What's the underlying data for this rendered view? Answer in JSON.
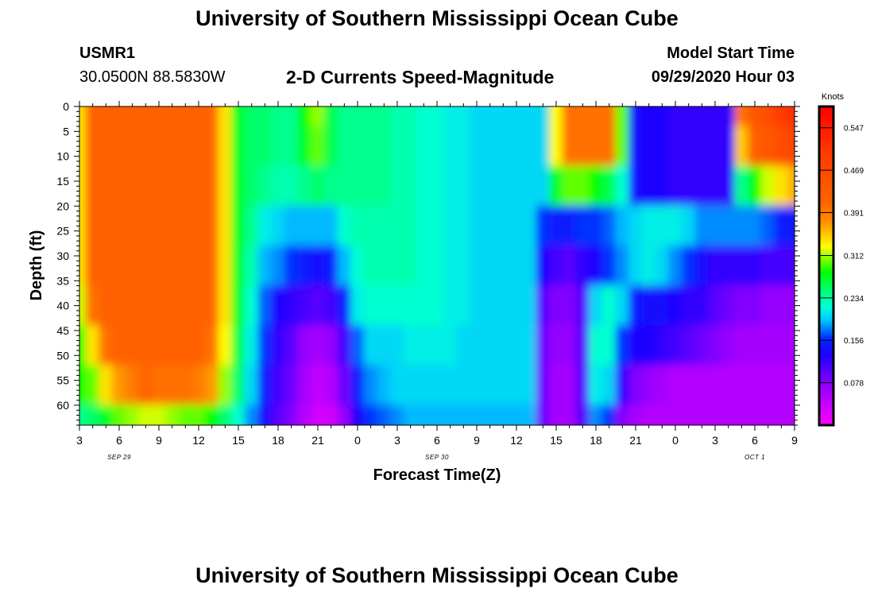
{
  "header": {
    "title": "University of Southern Mississippi Ocean Cube",
    "footer_title": "University of Southern Mississippi Ocean Cube",
    "station": "USMR1",
    "coords": "30.0500N 88.5830W",
    "chart_title": "2-D Currents Speed-Magnitude",
    "model_label": "Model Start Time",
    "model_datetime": "09/29/2020 Hour 03"
  },
  "chart_data": {
    "type": "heatmap",
    "title": "2-D Currents Speed-Magnitude",
    "xlabel": "Forecast Time(Z)",
    "ylabel": "Depth (ft)",
    "x_ticks": [
      "3",
      "6",
      "9",
      "12",
      "15",
      "18",
      "21",
      "0",
      "3",
      "6",
      "9",
      "12",
      "15",
      "18",
      "21",
      "0",
      "3",
      "6",
      "9"
    ],
    "x_date_labels": [
      {
        "label": "SEP 29",
        "at_tick": 1
      },
      {
        "label": "SEP 30",
        "at_tick": 9
      },
      {
        "label": "OCT 1",
        "at_tick": 17
      }
    ],
    "y_ticks": [
      0,
      5,
      10,
      15,
      20,
      25,
      30,
      35,
      40,
      45,
      50,
      55,
      60
    ],
    "ylim": [
      0,
      64
    ],
    "colorbar": {
      "unit": "Knots",
      "ticks": [
        "0.547",
        "0.469",
        "0.391",
        "0.312",
        "0.234",
        "0.156",
        "0.078"
      ],
      "range": [
        0,
        0.586
      ]
    },
    "columns_hours": [
      0,
      1,
      2,
      3,
      4,
      5,
      6,
      7,
      8,
      9,
      10,
      11,
      12,
      13,
      14,
      15,
      16,
      17,
      18,
      19,
      20,
      21,
      22,
      23,
      24,
      25,
      26,
      27,
      28,
      29,
      30,
      31,
      32,
      33,
      34,
      35,
      36,
      37,
      38,
      39,
      40,
      41,
      42,
      43,
      44,
      45,
      46,
      47,
      48,
      49,
      50,
      51,
      52,
      53,
      54
    ],
    "rows_depth_ft": [
      0,
      8,
      16,
      24,
      32,
      40,
      48,
      56,
      64
    ],
    "speed_knots": [
      [
        0.34,
        0.42,
        0.42,
        0.42,
        0.42,
        0.42,
        0.42,
        0.42,
        0.42,
        0.42,
        0.41,
        0.34,
        0.27,
        0.25,
        0.25,
        0.24,
        0.24,
        0.28,
        0.31,
        0.26,
        0.24,
        0.24,
        0.24,
        0.24,
        0.23,
        0.23,
        0.22,
        0.22,
        0.21,
        0.21,
        0.2,
        0.2,
        0.2,
        0.2,
        0.2,
        0.2,
        0.33,
        0.4,
        0.4,
        0.4,
        0.4,
        0.3,
        0.14,
        0.13,
        0.13,
        0.12,
        0.12,
        0.12,
        0.12,
        0.12,
        0.4,
        0.44,
        0.46,
        0.5,
        0.52
      ],
      [
        0.34,
        0.42,
        0.42,
        0.42,
        0.42,
        0.42,
        0.42,
        0.42,
        0.42,
        0.42,
        0.41,
        0.34,
        0.27,
        0.25,
        0.25,
        0.24,
        0.24,
        0.27,
        0.3,
        0.26,
        0.24,
        0.24,
        0.24,
        0.24,
        0.23,
        0.23,
        0.22,
        0.22,
        0.21,
        0.21,
        0.2,
        0.2,
        0.2,
        0.2,
        0.2,
        0.2,
        0.33,
        0.4,
        0.4,
        0.4,
        0.4,
        0.3,
        0.14,
        0.13,
        0.13,
        0.12,
        0.12,
        0.12,
        0.12,
        0.12,
        0.35,
        0.42,
        0.44,
        0.46,
        0.48
      ],
      [
        0.34,
        0.42,
        0.42,
        0.42,
        0.42,
        0.42,
        0.42,
        0.42,
        0.42,
        0.42,
        0.41,
        0.34,
        0.27,
        0.25,
        0.24,
        0.23,
        0.23,
        0.24,
        0.25,
        0.24,
        0.24,
        0.24,
        0.24,
        0.24,
        0.23,
        0.23,
        0.22,
        0.22,
        0.21,
        0.21,
        0.2,
        0.2,
        0.2,
        0.2,
        0.2,
        0.2,
        0.27,
        0.3,
        0.3,
        0.28,
        0.26,
        0.22,
        0.14,
        0.13,
        0.13,
        0.12,
        0.12,
        0.12,
        0.12,
        0.12,
        0.24,
        0.28,
        0.32,
        0.34,
        0.36
      ],
      [
        0.34,
        0.42,
        0.42,
        0.42,
        0.42,
        0.42,
        0.42,
        0.42,
        0.42,
        0.42,
        0.41,
        0.34,
        0.27,
        0.24,
        0.21,
        0.2,
        0.19,
        0.19,
        0.19,
        0.19,
        0.22,
        0.23,
        0.23,
        0.23,
        0.23,
        0.23,
        0.22,
        0.22,
        0.21,
        0.21,
        0.2,
        0.2,
        0.2,
        0.2,
        0.2,
        0.16,
        0.15,
        0.15,
        0.16,
        0.16,
        0.17,
        0.19,
        0.2,
        0.21,
        0.21,
        0.21,
        0.2,
        0.18,
        0.18,
        0.18,
        0.18,
        0.18,
        0.17,
        0.15,
        0.15
      ],
      [
        0.34,
        0.42,
        0.42,
        0.42,
        0.42,
        0.42,
        0.42,
        0.42,
        0.42,
        0.42,
        0.41,
        0.34,
        0.27,
        0.23,
        0.19,
        0.18,
        0.16,
        0.15,
        0.14,
        0.15,
        0.19,
        0.22,
        0.23,
        0.23,
        0.23,
        0.23,
        0.22,
        0.22,
        0.21,
        0.21,
        0.2,
        0.2,
        0.2,
        0.2,
        0.2,
        0.13,
        0.11,
        0.1,
        0.12,
        0.13,
        0.16,
        0.18,
        0.2,
        0.21,
        0.2,
        0.18,
        0.16,
        0.14,
        0.12,
        0.12,
        0.12,
        0.12,
        0.11,
        0.11,
        0.11
      ],
      [
        0.32,
        0.4,
        0.42,
        0.42,
        0.42,
        0.42,
        0.42,
        0.42,
        0.42,
        0.42,
        0.41,
        0.34,
        0.27,
        0.22,
        0.17,
        0.13,
        0.12,
        0.11,
        0.1,
        0.11,
        0.15,
        0.21,
        0.22,
        0.22,
        0.22,
        0.22,
        0.22,
        0.22,
        0.21,
        0.21,
        0.2,
        0.2,
        0.2,
        0.2,
        0.2,
        0.1,
        0.08,
        0.08,
        0.1,
        0.2,
        0.22,
        0.2,
        0.15,
        0.14,
        0.14,
        0.13,
        0.12,
        0.12,
        0.1,
        0.09,
        0.08,
        0.08,
        0.07,
        0.07,
        0.07
      ],
      [
        0.28,
        0.34,
        0.4,
        0.42,
        0.42,
        0.42,
        0.42,
        0.42,
        0.42,
        0.42,
        0.4,
        0.33,
        0.26,
        0.21,
        0.16,
        0.12,
        0.1,
        0.07,
        0.06,
        0.07,
        0.11,
        0.17,
        0.2,
        0.2,
        0.2,
        0.21,
        0.21,
        0.21,
        0.21,
        0.2,
        0.2,
        0.2,
        0.2,
        0.2,
        0.2,
        0.09,
        0.07,
        0.07,
        0.1,
        0.22,
        0.22,
        0.16,
        0.13,
        0.13,
        0.12,
        0.11,
        0.1,
        0.09,
        0.08,
        0.07,
        0.06,
        0.06,
        0.06,
        0.06,
        0.06
      ],
      [
        0.28,
        0.3,
        0.34,
        0.37,
        0.39,
        0.41,
        0.4,
        0.4,
        0.4,
        0.39,
        0.37,
        0.31,
        0.25,
        0.2,
        0.15,
        0.11,
        0.09,
        0.06,
        0.04,
        0.05,
        0.09,
        0.15,
        0.18,
        0.19,
        0.2,
        0.2,
        0.2,
        0.2,
        0.2,
        0.2,
        0.2,
        0.2,
        0.2,
        0.2,
        0.2,
        0.09,
        0.06,
        0.06,
        0.1,
        0.21,
        0.2,
        0.12,
        0.08,
        0.07,
        0.06,
        0.05,
        0.05,
        0.05,
        0.05,
        0.05,
        0.05,
        0.05,
        0.05,
        0.05,
        0.05
      ],
      [
        0.24,
        0.25,
        0.27,
        0.3,
        0.31,
        0.32,
        0.32,
        0.31,
        0.3,
        0.3,
        0.28,
        0.25,
        0.22,
        0.18,
        0.14,
        0.1,
        0.08,
        0.05,
        0.03,
        0.03,
        0.07,
        0.13,
        0.16,
        0.17,
        0.18,
        0.19,
        0.19,
        0.19,
        0.19,
        0.19,
        0.19,
        0.19,
        0.19,
        0.19,
        0.19,
        0.09,
        0.06,
        0.06,
        0.1,
        0.18,
        0.16,
        0.08,
        0.06,
        0.05,
        0.05,
        0.05,
        0.05,
        0.05,
        0.05,
        0.05,
        0.05,
        0.05,
        0.05,
        0.05,
        0.05
      ]
    ]
  }
}
